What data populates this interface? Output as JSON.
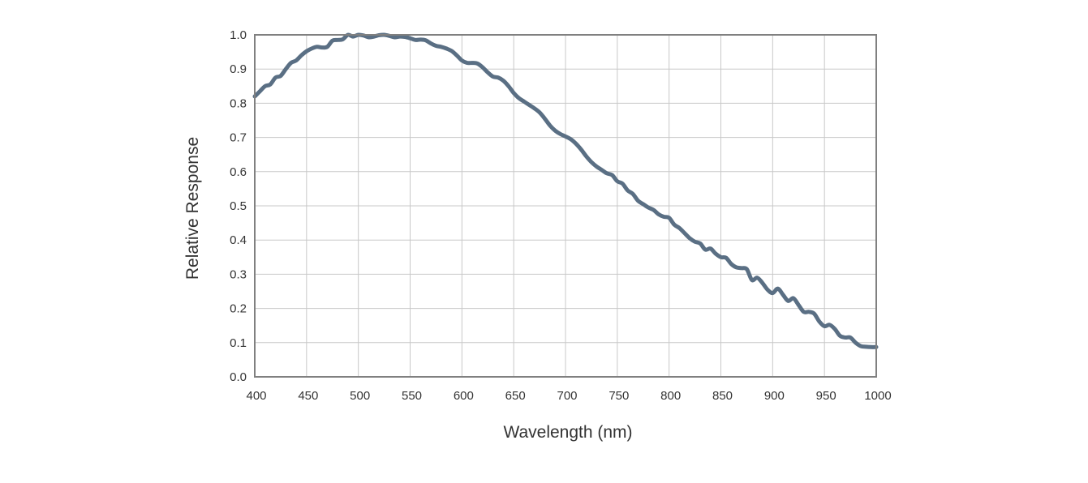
{
  "chart_data": {
    "type": "line",
    "title": "",
    "xlabel": "Wavelength (nm)",
    "ylabel": "Relative Response",
    "xlim": [
      400,
      1000
    ],
    "ylim": [
      0.0,
      1.0
    ],
    "grid": true,
    "x_ticks": [
      400,
      450,
      500,
      550,
      600,
      650,
      700,
      750,
      800,
      850,
      900,
      950,
      1000
    ],
    "x_tick_labels": [
      "400",
      "450",
      "500",
      "550",
      "600",
      "650",
      "700",
      "750",
      "800",
      "850",
      "900",
      "950",
      "1000"
    ],
    "y_ticks": [
      0.0,
      0.1,
      0.2,
      0.3,
      0.4,
      0.5,
      0.6,
      0.7,
      0.8,
      0.9,
      1.0
    ],
    "y_tick_labels": [
      "0.0",
      "0.1",
      "0.2",
      "0.3",
      "0.4",
      "0.5",
      "0.6",
      "0.7",
      "0.8",
      "0.9",
      "1.0"
    ],
    "series": [
      {
        "name": "Relative Response",
        "color": "#5a6f84",
        "x": [
          400,
          405,
          410,
          415,
          420,
          425,
          430,
          435,
          440,
          445,
          450,
          455,
          460,
          465,
          470,
          475,
          480,
          485,
          490,
          495,
          500,
          505,
          510,
          515,
          520,
          525,
          530,
          535,
          540,
          545,
          550,
          555,
          560,
          565,
          570,
          575,
          580,
          585,
          590,
          595,
          600,
          605,
          610,
          615,
          620,
          625,
          630,
          635,
          640,
          645,
          650,
          655,
          660,
          665,
          670,
          675,
          680,
          685,
          690,
          695,
          700,
          705,
          710,
          715,
          720,
          725,
          730,
          735,
          740,
          745,
          750,
          755,
          760,
          765,
          770,
          775,
          780,
          785,
          790,
          795,
          800,
          805,
          810,
          815,
          820,
          825,
          830,
          835,
          840,
          845,
          850,
          855,
          860,
          865,
          870,
          875,
          880,
          885,
          890,
          895,
          900,
          905,
          910,
          915,
          920,
          925,
          930,
          935,
          940,
          945,
          950,
          955,
          960,
          965,
          970,
          975,
          980,
          985,
          990,
          995,
          1000
        ],
        "y": [
          0.82,
          0.835,
          0.85,
          0.855,
          0.875,
          0.88,
          0.9,
          0.918,
          0.925,
          0.94,
          0.952,
          0.96,
          0.965,
          0.963,
          0.965,
          0.983,
          0.985,
          0.987,
          1.0,
          0.995,
          1.0,
          0.998,
          0.993,
          0.995,
          0.999,
          1.0,
          0.997,
          0.993,
          0.995,
          0.994,
          0.99,
          0.985,
          0.986,
          0.984,
          0.975,
          0.968,
          0.965,
          0.96,
          0.953,
          0.94,
          0.925,
          0.918,
          0.918,
          0.916,
          0.905,
          0.89,
          0.878,
          0.875,
          0.866,
          0.85,
          0.83,
          0.815,
          0.805,
          0.795,
          0.785,
          0.773,
          0.755,
          0.735,
          0.72,
          0.71,
          0.703,
          0.695,
          0.682,
          0.665,
          0.645,
          0.628,
          0.615,
          0.605,
          0.595,
          0.59,
          0.572,
          0.565,
          0.545,
          0.535,
          0.515,
          0.505,
          0.495,
          0.488,
          0.475,
          0.468,
          0.465,
          0.445,
          0.435,
          0.42,
          0.405,
          0.395,
          0.39,
          0.372,
          0.375,
          0.36,
          0.35,
          0.348,
          0.33,
          0.32,
          0.318,
          0.315,
          0.283,
          0.29,
          0.275,
          0.255,
          0.245,
          0.258,
          0.24,
          0.222,
          0.23,
          0.21,
          0.19,
          0.19,
          0.185,
          0.162,
          0.148,
          0.152,
          0.14,
          0.12,
          0.115,
          0.115,
          0.1,
          0.09,
          0.088,
          0.087,
          0.087
        ]
      }
    ]
  }
}
